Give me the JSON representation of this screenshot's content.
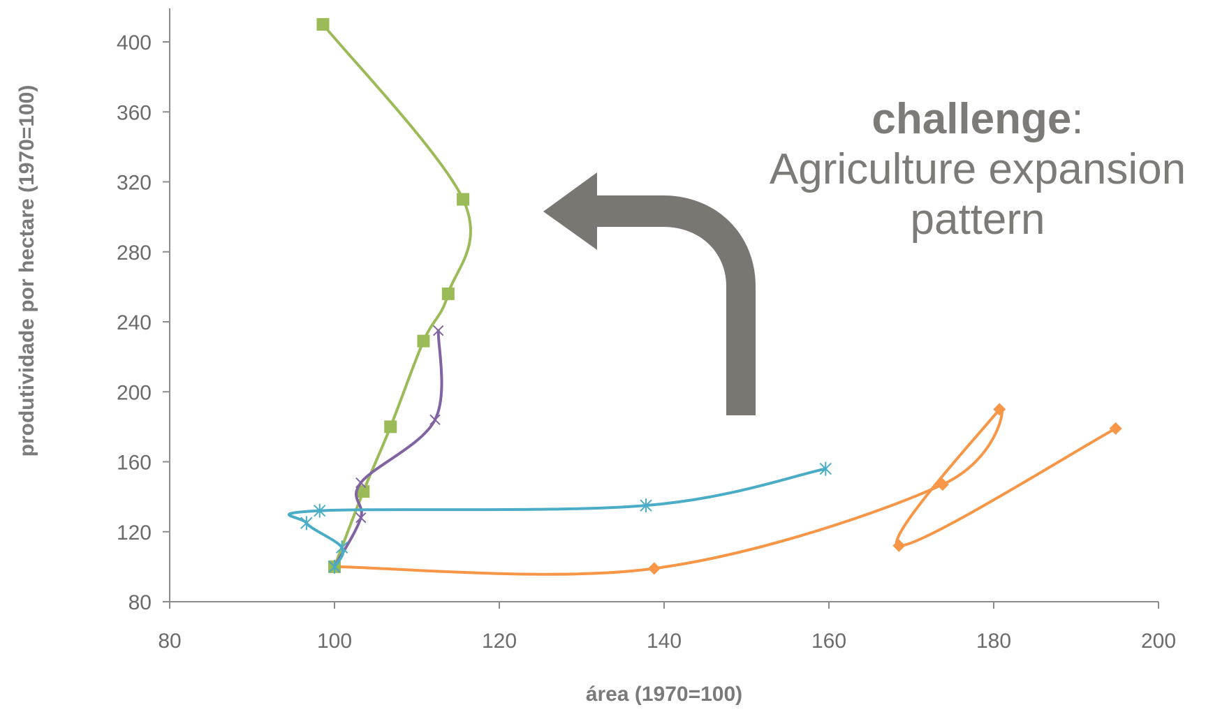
{
  "chart_data": {
    "type": "scatter",
    "title": "",
    "xlabel": "área (1970=100)",
    "ylabel": "produtividade por hectare (1970=100)",
    "xlim": [
      80,
      200
    ],
    "ylim": [
      80,
      400
    ],
    "xticks": [
      "80",
      "100",
      "120",
      "140",
      "160",
      "180",
      "200"
    ],
    "yticks": [
      "80",
      "120",
      "160",
      "200",
      "240",
      "280",
      "320",
      "360",
      "400"
    ],
    "grid": false,
    "legend": "none",
    "series": [
      {
        "marker": "diamond",
        "color": "#f79646",
        "points": [
          [
            100,
            100
          ],
          [
            138.8,
            99
          ],
          [
            173.8,
            147
          ],
          [
            180.7,
            190
          ],
          [
            168.5,
            112
          ],
          [
            194.8,
            179
          ]
        ]
      },
      {
        "marker": "square",
        "color": "#9bbb59",
        "points": [
          [
            100,
            100
          ],
          [
            103.5,
            143
          ],
          [
            106.8,
            180
          ],
          [
            110.8,
            229
          ],
          [
            113.8,
            256
          ],
          [
            115.6,
            310
          ],
          [
            98.6,
            410
          ]
        ]
      },
      {
        "marker": "x",
        "color": "#8064a2",
        "points": [
          [
            100,
            100
          ],
          [
            103.2,
            128
          ],
          [
            103.2,
            148
          ],
          [
            112.2,
            184
          ],
          [
            112.6,
            235
          ]
        ]
      },
      {
        "marker": "star",
        "color": "#4bacc6",
        "points": [
          [
            100,
            100
          ],
          [
            100.9,
            111
          ],
          [
            96.6,
            125
          ],
          [
            98.2,
            132
          ],
          [
            137.8,
            135
          ],
          [
            159.6,
            156
          ]
        ]
      }
    ]
  },
  "annotation": {
    "emphasis": "challenge",
    "colon": ":",
    "line1": "Agriculture expansion",
    "line2": "pattern"
  },
  "colors": {
    "axis": "#8c8c8c",
    "text": "#6b6b6b",
    "arrow": "#7a7773"
  },
  "icons": {
    "arrow": "curved-arrow-up-left-icon"
  }
}
